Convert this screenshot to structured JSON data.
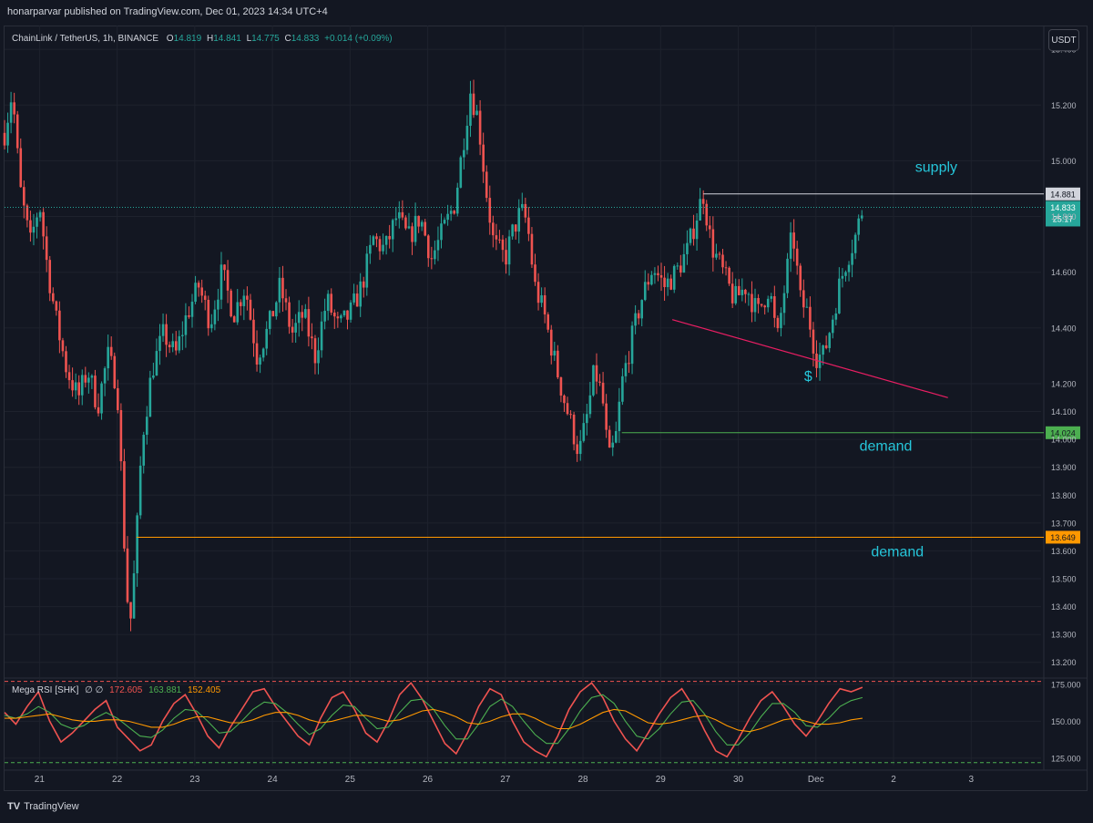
{
  "header": {
    "publish_line": "honarparvar published on TradingView.com, Dec 01, 2023 14:34 UTC+4"
  },
  "legend": {
    "symbol": "ChainLink / TetherUS, 1h, BINANCE",
    "o_label": "O",
    "o_value": "14.819",
    "h_label": "H",
    "h_value": "14.841",
    "l_label": "L",
    "l_value": "14.775",
    "c_label": "C",
    "c_value": "14.833",
    "change": "+0.014 (+0.09%)"
  },
  "currency_button": "USDT",
  "rsi_legend": {
    "name": "Mega RSI [SHK]",
    "symbols": "∅ ∅",
    "v1": "172.605",
    "v2": "163.881",
    "v3": "152.405"
  },
  "footer": {
    "brand": "TradingView"
  },
  "colors": {
    "background": "#131722",
    "up": "#26a69a",
    "down": "#ef5350",
    "supply_line": "#d1d4dc",
    "demand_line_1": "#4caf50",
    "demand_line_2": "#ff9800",
    "trend_line": "#e91e63",
    "annotation_text": "#26c6da",
    "rsi_line": "#ef5350",
    "rsi_signal_1": "#4caf50",
    "rsi_signal_2": "#ff9800"
  },
  "chart_data": [
    {
      "type": "candlestick",
      "ylim": [
        13.15,
        15.42
      ],
      "y_ticks": [
        "13.200",
        "13.300",
        "13.400",
        "13.500",
        "13.600",
        "13.700",
        "13.800",
        "13.900",
        "14.000",
        "14.100",
        "14.200",
        "14.400",
        "14.600",
        "14.800",
        "15.000",
        "15.200",
        "15.400"
      ],
      "y_tick_values": [
        13.2,
        13.3,
        13.4,
        13.5,
        13.6,
        13.7,
        13.8,
        13.9,
        14.0,
        14.1,
        14.2,
        14.4,
        14.6,
        14.8,
        15.0,
        15.2,
        15.4
      ],
      "x_ticks": [
        "21",
        "22",
        "23",
        "24",
        "25",
        "26",
        "27",
        "28",
        "29",
        "30",
        "Dec",
        "2",
        "3"
      ],
      "x_tick_days": [
        0,
        1,
        2,
        3,
        4,
        5,
        6,
        7,
        8,
        9,
        10,
        11,
        12
      ],
      "x_range_days": [
        -0.45,
        12.9
      ],
      "price_path": [
        [
          -0.45,
          15.1
        ],
        [
          -0.35,
          15.25
        ],
        [
          -0.25,
          14.9
        ],
        [
          -0.12,
          14.7
        ],
        [
          0.0,
          14.85
        ],
        [
          0.1,
          14.62
        ],
        [
          0.22,
          14.42
        ],
        [
          0.35,
          14.25
        ],
        [
          0.5,
          14.15
        ],
        [
          0.62,
          14.25
        ],
        [
          0.75,
          14.12
        ],
        [
          0.88,
          14.3
        ],
        [
          1.0,
          14.2
        ],
        [
          1.05,
          13.9
        ],
        [
          1.12,
          13.45
        ],
        [
          1.18,
          13.35
        ],
        [
          1.25,
          13.65
        ],
        [
          1.32,
          14.0
        ],
        [
          1.45,
          14.25
        ],
        [
          1.6,
          14.38
        ],
        [
          1.75,
          14.3
        ],
        [
          1.9,
          14.45
        ],
        [
          2.05,
          14.55
        ],
        [
          2.2,
          14.42
        ],
        [
          2.35,
          14.6
        ],
        [
          2.5,
          14.45
        ],
        [
          2.65,
          14.55
        ],
        [
          2.8,
          14.3
        ],
        [
          2.95,
          14.4
        ],
        [
          3.1,
          14.55
        ],
        [
          3.25,
          14.38
        ],
        [
          3.4,
          14.45
        ],
        [
          3.55,
          14.3
        ],
        [
          3.7,
          14.5
        ],
        [
          3.85,
          14.4
        ],
        [
          4.0,
          14.45
        ],
        [
          4.15,
          14.55
        ],
        [
          4.3,
          14.72
        ],
        [
          4.45,
          14.68
        ],
        [
          4.6,
          14.8
        ],
        [
          4.75,
          14.72
        ],
        [
          4.9,
          14.8
        ],
        [
          5.05,
          14.65
        ],
        [
          5.2,
          14.75
        ],
        [
          5.35,
          14.85
        ],
        [
          5.45,
          15.05
        ],
        [
          5.55,
          15.25
        ],
        [
          5.65,
          15.15
        ],
        [
          5.75,
          14.9
        ],
        [
          5.85,
          14.7
        ],
        [
          6.0,
          14.65
        ],
        [
          6.1,
          14.75
        ],
        [
          6.2,
          14.82
        ],
        [
          6.28,
          14.78
        ],
        [
          6.38,
          14.55
        ],
        [
          6.5,
          14.45
        ],
        [
          6.62,
          14.3
        ],
        [
          6.75,
          14.15
        ],
        [
          6.85,
          14.05
        ],
        [
          6.95,
          13.95
        ],
        [
          7.05,
          14.08
        ],
        [
          7.15,
          14.25
        ],
        [
          7.25,
          14.15
        ],
        [
          7.33,
          13.92
        ],
        [
          7.42,
          14.0
        ],
        [
          7.5,
          14.2
        ],
        [
          7.62,
          14.35
        ],
        [
          7.75,
          14.5
        ],
        [
          7.9,
          14.62
        ],
        [
          8.05,
          14.55
        ],
        [
          8.2,
          14.6
        ],
        [
          8.35,
          14.68
        ],
        [
          8.48,
          14.82
        ],
        [
          8.55,
          14.88
        ],
        [
          8.65,
          14.7
        ],
        [
          8.8,
          14.6
        ],
        [
          8.95,
          14.5
        ],
        [
          9.1,
          14.55
        ],
        [
          9.25,
          14.45
        ],
        [
          9.4,
          14.55
        ],
        [
          9.5,
          14.35
        ],
        [
          9.6,
          14.55
        ],
        [
          9.7,
          14.75
        ],
        [
          9.8,
          14.5
        ],
        [
          9.9,
          14.45
        ],
        [
          10.0,
          14.3
        ],
        [
          10.1,
          14.3
        ],
        [
          10.2,
          14.42
        ],
        [
          10.3,
          14.55
        ],
        [
          10.4,
          14.65
        ],
        [
          10.5,
          14.72
        ],
        [
          10.6,
          14.83
        ]
      ],
      "levels": [
        {
          "label": "supply",
          "value": 14.881,
          "tag": "14.881",
          "from_day": 8.55,
          "color_key": "supply_line"
        },
        {
          "label": "demand",
          "value": 14.024,
          "tag": "14.024",
          "from_day": 7.5,
          "color_key": "demand_line_1"
        },
        {
          "label": "demand",
          "value": 13.649,
          "tag": "13.649",
          "from_day": 1.25,
          "color_key": "demand_line_2"
        }
      ],
      "last_price": {
        "value": 14.833,
        "tag": "14.833",
        "countdown": "25:17"
      },
      "trend_line": {
        "from": [
          8.15,
          14.43
        ],
        "to": [
          11.7,
          14.15
        ]
      },
      "annotations": [
        {
          "text": "supply",
          "day": 11.55,
          "value": 14.96
        },
        {
          "text": "demand",
          "day": 10.9,
          "value": 13.96
        },
        {
          "text": "demand",
          "day": 11.05,
          "value": 13.58
        },
        {
          "text": "$",
          "day": 9.9,
          "value": 14.21
        }
      ]
    },
    {
      "type": "line",
      "title": "Mega RSI [SHK]",
      "ylim": [
        120,
        178
      ],
      "y_ticks": [
        "125.000",
        "150.000",
        "175.000"
      ],
      "y_tick_values": [
        125,
        150,
        175
      ],
      "bands": [
        177,
        122
      ],
      "series": [
        {
          "name": "172.605",
          "color_key": "rsi_line",
          "values": [
            156,
            148,
            160,
            170,
            150,
            136,
            142,
            150,
            158,
            164,
            146,
            138,
            130,
            134,
            150,
            162,
            168,
            155,
            140,
            132,
            146,
            158,
            170,
            172,
            160,
            150,
            140,
            134,
            152,
            166,
            170,
            158,
            142,
            136,
            150,
            168,
            176,
            165,
            150,
            135,
            128,
            142,
            160,
            172,
            168,
            150,
            136,
            130,
            126,
            140,
            158,
            170,
            176,
            166,
            150,
            138,
            130,
            142,
            155,
            166,
            172,
            160,
            144,
            130,
            126,
            138,
            152,
            164,
            170,
            160,
            148,
            140,
            150,
            162,
            172,
            170,
            173
          ]
        },
        {
          "name": "163.881",
          "color_key": "rsi_signal_1",
          "values": [
            154,
            152,
            155,
            160,
            156,
            148,
            145,
            147,
            152,
            156,
            152,
            146,
            140,
            139,
            144,
            152,
            158,
            157,
            150,
            142,
            143,
            150,
            158,
            163,
            162,
            156,
            148,
            141,
            145,
            154,
            161,
            160,
            152,
            145,
            146,
            156,
            164,
            165,
            158,
            147,
            138,
            138,
            148,
            160,
            165,
            160,
            150,
            141,
            135,
            135,
            145,
            157,
            166,
            168,
            162,
            150,
            140,
            138,
            145,
            155,
            163,
            164,
            155,
            143,
            134,
            134,
            142,
            153,
            162,
            162,
            156,
            147,
            146,
            152,
            160,
            164,
            166
          ]
        },
        {
          "name": "152.405",
          "color_key": "rsi_signal_2",
          "values": [
            152,
            152,
            153,
            154,
            155,
            153,
            151,
            150,
            150,
            151,
            151,
            150,
            148,
            146,
            146,
            148,
            151,
            153,
            153,
            151,
            149,
            149,
            151,
            154,
            156,
            156,
            154,
            151,
            149,
            150,
            152,
            154,
            154,
            152,
            150,
            151,
            154,
            157,
            158,
            156,
            153,
            149,
            148,
            150,
            153,
            155,
            155,
            152,
            148,
            145,
            145,
            148,
            152,
            156,
            158,
            157,
            153,
            149,
            148,
            149,
            151,
            153,
            154,
            151,
            147,
            144,
            143,
            145,
            148,
            151,
            152,
            150,
            148,
            148,
            149,
            151,
            152
          ]
        }
      ]
    }
  ]
}
